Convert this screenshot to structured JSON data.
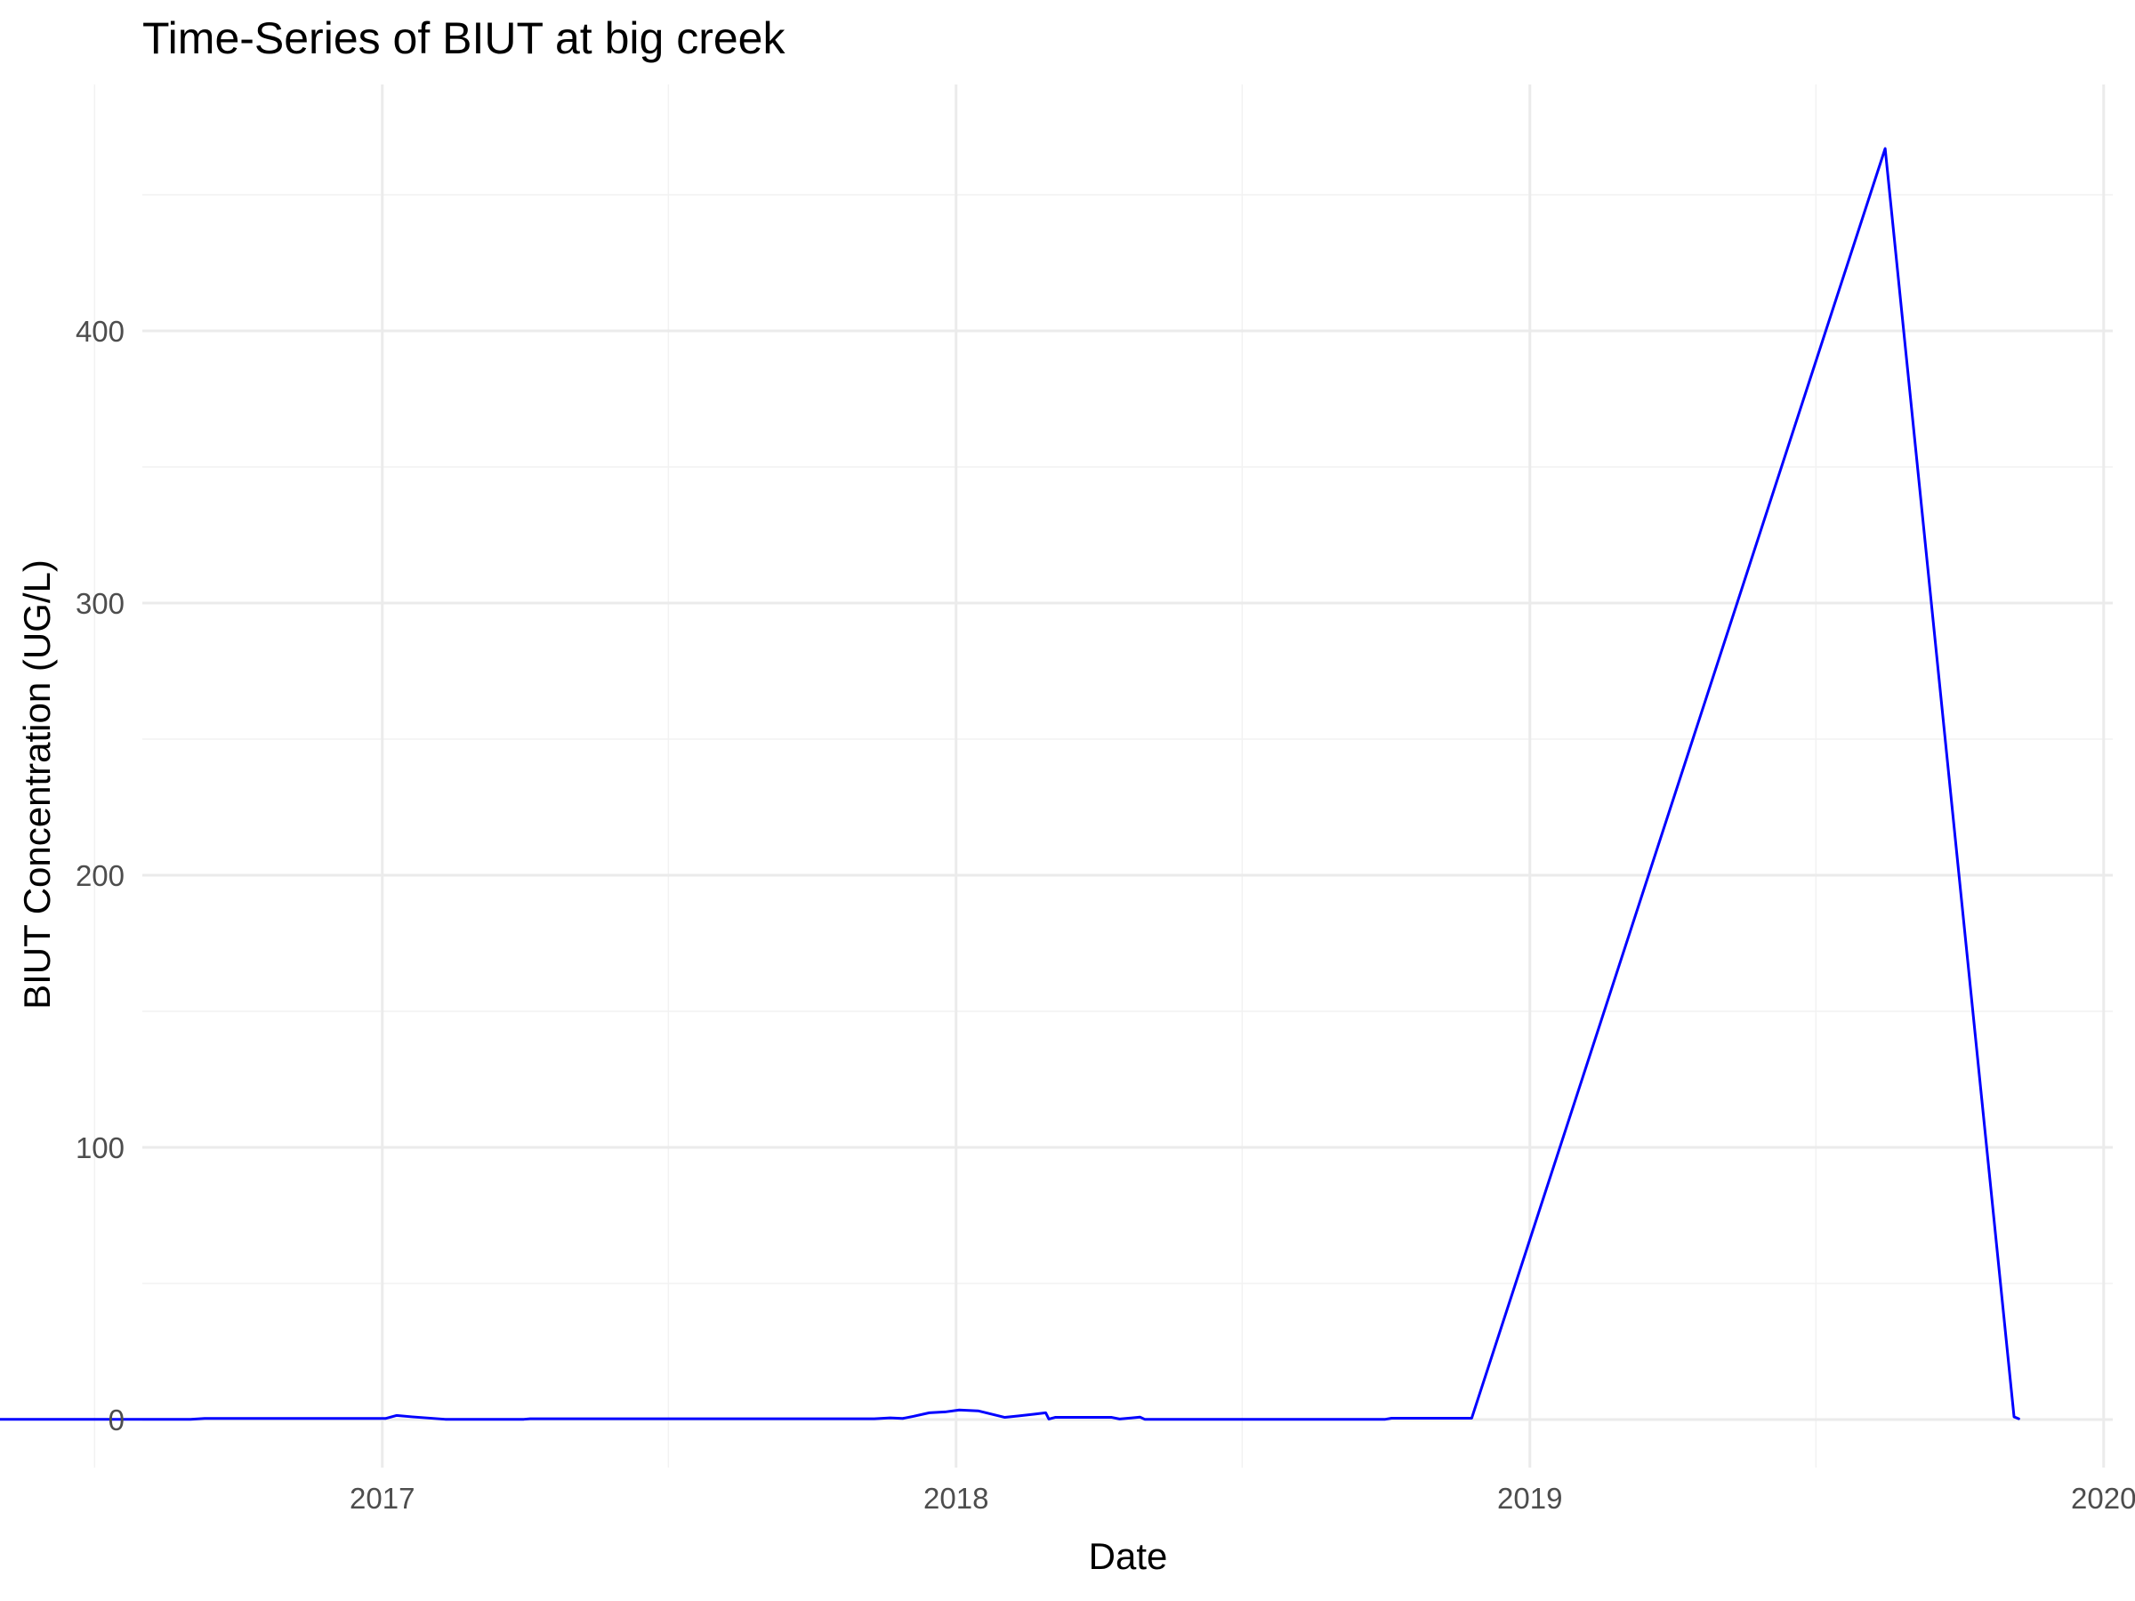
{
  "chart_data": {
    "type": "line",
    "title": "Time-Series of BIUT at big creek",
    "xlabel": "Date",
    "ylabel": "BIUT Concentration (UG/L)",
    "x_type": "date",
    "xlim": [
      "2016-01-01",
      "2020-01-01"
    ],
    "ylim": [
      -23,
      490
    ],
    "x_ticks": [
      {
        "label": "2017",
        "value": "2017-01-01"
      },
      {
        "label": "2018",
        "value": "2018-01-01"
      },
      {
        "label": "2019",
        "value": "2019-01-01"
      },
      {
        "label": "2020",
        "value": "2020-01-01"
      }
    ],
    "x_minor_ticks": [
      "2016-07-02",
      "2017-07-02",
      "2018-07-02",
      "2019-07-02"
    ],
    "y_ticks": [
      0,
      100,
      200,
      300,
      400
    ],
    "y_minor_ticks": [
      50,
      150,
      250,
      350,
      450
    ],
    "grid": true,
    "legend": "none",
    "series": [
      {
        "color": "#0000ff",
        "points": [
          {
            "x": "2016-04-01",
            "y": 0.1
          },
          {
            "x": "2016-09-01",
            "y": 0.1
          },
          {
            "x": "2016-09-10",
            "y": 0.4
          },
          {
            "x": "2017-01-03",
            "y": 0.4
          },
          {
            "x": "2017-01-10",
            "y": 1.5
          },
          {
            "x": "2017-01-20",
            "y": 1.0
          },
          {
            "x": "2017-02-10",
            "y": 0.1
          },
          {
            "x": "2017-04-01",
            "y": 0.1
          },
          {
            "x": "2017-04-05",
            "y": 0.3
          },
          {
            "x": "2017-11-10",
            "y": 0.3
          },
          {
            "x": "2017-11-20",
            "y": 0.6
          },
          {
            "x": "2017-11-28",
            "y": 0.4
          },
          {
            "x": "2017-12-05",
            "y": 1.2
          },
          {
            "x": "2017-12-15",
            "y": 2.5
          },
          {
            "x": "2017-12-25",
            "y": 2.8
          },
          {
            "x": "2018-01-03",
            "y": 3.5
          },
          {
            "x": "2018-01-15",
            "y": 3.2
          },
          {
            "x": "2018-02-01",
            "y": 0.8
          },
          {
            "x": "2018-02-20",
            "y": 2.0
          },
          {
            "x": "2018-02-27",
            "y": 2.5
          },
          {
            "x": "2018-03-01",
            "y": 0.2
          },
          {
            "x": "2018-03-05",
            "y": 0.8
          },
          {
            "x": "2018-04-10",
            "y": 0.8
          },
          {
            "x": "2018-04-15",
            "y": 0.2
          },
          {
            "x": "2018-04-28",
            "y": 0.9
          },
          {
            "x": "2018-05-01",
            "y": 0.1
          },
          {
            "x": "2018-10-01",
            "y": 0.1
          },
          {
            "x": "2018-10-05",
            "y": 0.5
          },
          {
            "x": "2018-11-25",
            "y": 0.5
          },
          {
            "x": "2019-08-15",
            "y": 467
          },
          {
            "x": "2019-11-05",
            "y": 1.0
          },
          {
            "x": "2019-11-08",
            "y": 0.3
          }
        ]
      }
    ]
  }
}
